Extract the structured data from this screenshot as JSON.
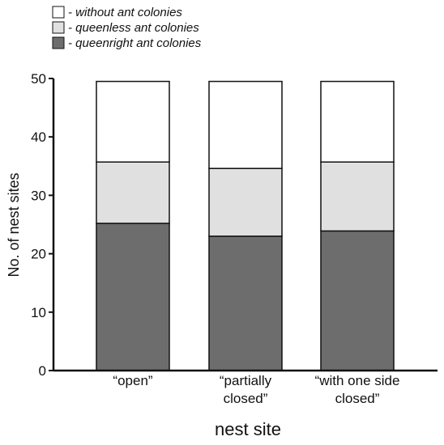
{
  "chart_data": {
    "type": "bar",
    "stacked": true,
    "categories": [
      [
        "“open”"
      ],
      [
        "“partially",
        "closed”"
      ],
      [
        "“with one side",
        "closed”"
      ]
    ],
    "series": [
      {
        "name": "- queenright ant colonies",
        "color": "#6e6d6e",
        "values": [
          25.2,
          23,
          23.9
        ]
      },
      {
        "name": "- queenless ant colonies",
        "color": "#e0e0e0",
        "values": [
          10.5,
          11.6,
          11.8
        ]
      },
      {
        "name": "- without ant colonies",
        "color": "#ffffff",
        "values": [
          13.8,
          14.9,
          13.8
        ]
      }
    ],
    "legend_order": [
      2,
      1,
      0
    ],
    "legend_position": "top-left",
    "xlabel": "nest site",
    "ylabel": "No. of nest sites",
    "ylim": [
      0,
      50
    ],
    "yticks": [
      0,
      10,
      20,
      30,
      40,
      50
    ],
    "grid": false
  }
}
